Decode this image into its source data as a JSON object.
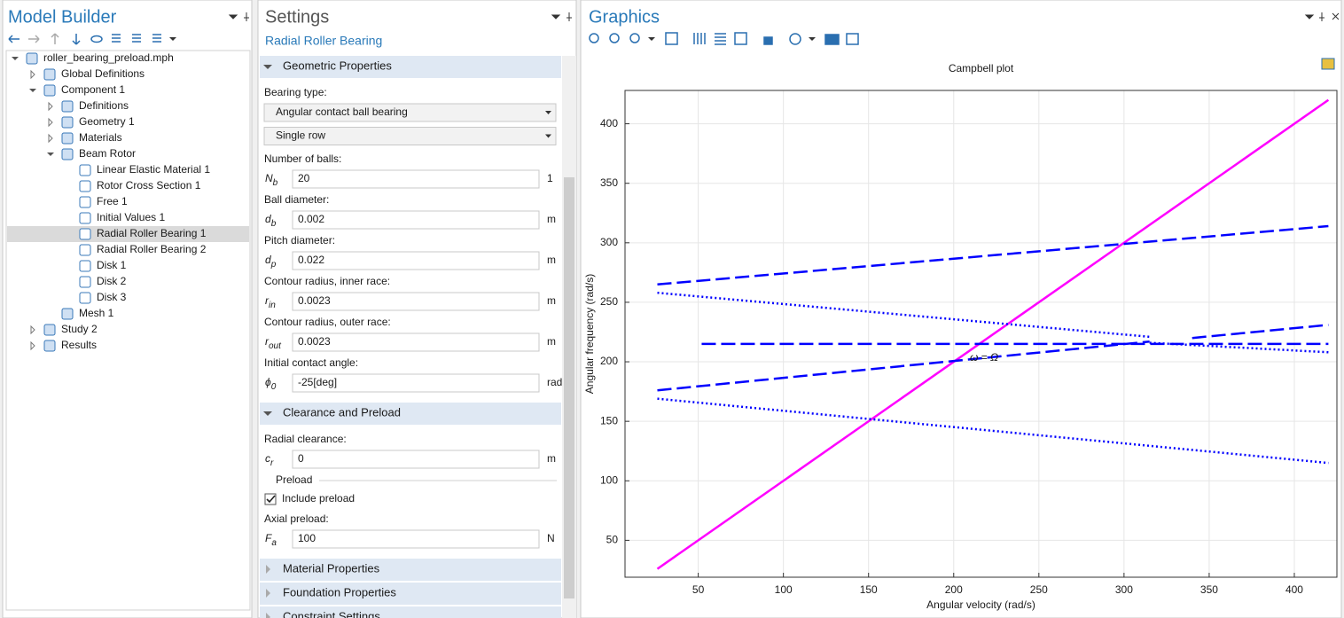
{
  "model_builder": {
    "title": "Model Builder",
    "tree": [
      {
        "label": "roller_bearing_preload.mph",
        "children": [
          {
            "label": "Global Definitions",
            "expandable": true
          },
          {
            "label": "Component 1",
            "children": [
              {
                "label": "Definitions",
                "expandable": true
              },
              {
                "label": "Geometry 1",
                "expandable": true
              },
              {
                "label": "Materials",
                "expandable": true
              },
              {
                "label": "Beam Rotor",
                "children": [
                  {
                    "label": "Linear Elastic Material 1"
                  },
                  {
                    "label": "Rotor Cross Section 1"
                  },
                  {
                    "label": "Free 1"
                  },
                  {
                    "label": "Initial Values 1"
                  },
                  {
                    "label": "Radial Roller Bearing 1",
                    "selected": true
                  },
                  {
                    "label": "Radial Roller Bearing 2"
                  },
                  {
                    "label": "Disk 1"
                  },
                  {
                    "label": "Disk 2"
                  },
                  {
                    "label": "Disk 3"
                  }
                ]
              },
              {
                "label": "Mesh 1"
              }
            ]
          },
          {
            "label": "Study 2",
            "expandable": true
          },
          {
            "label": "Results",
            "expandable": true
          }
        ]
      }
    ]
  },
  "settings": {
    "title": "Settings",
    "subtitle": "Radial Roller Bearing",
    "sections": [
      {
        "title": "Geometric Properties",
        "items": [
          {
            "type": "label",
            "text": "Bearing type:"
          },
          {
            "type": "dropdown",
            "value": "Angular contact ball bearing"
          },
          {
            "type": "dropdown",
            "value": "Single row"
          },
          {
            "type": "label",
            "text": "Number of balls:"
          },
          {
            "type": "input",
            "symbol": {
              "base": "N",
              "sub": "b"
            },
            "value": "20",
            "unit": "1"
          },
          {
            "type": "label",
            "text": "Ball diameter:"
          },
          {
            "type": "input",
            "symbol": {
              "base": "d",
              "sub": "b"
            },
            "value": "0.002",
            "unit": "m"
          },
          {
            "type": "label",
            "text": "Pitch diameter:"
          },
          {
            "type": "input",
            "symbol": {
              "base": "d",
              "sub": "p"
            },
            "value": "0.022",
            "unit": "m"
          },
          {
            "type": "label",
            "text": "Contour radius, inner race:"
          },
          {
            "type": "input",
            "symbol": {
              "base": "r",
              "sub": "in"
            },
            "value": "0.0023",
            "unit": "m"
          },
          {
            "type": "label",
            "text": "Contour radius, outer race:"
          },
          {
            "type": "input",
            "symbol": {
              "base": "r",
              "sub": "out"
            },
            "value": "0.0023",
            "unit": "m"
          },
          {
            "type": "label",
            "text": "Initial contact angle:"
          },
          {
            "type": "input",
            "symbol": {
              "base": "ϕ",
              "sub": "0"
            },
            "value": "-25[deg]",
            "unit": "rad"
          }
        ]
      },
      {
        "title": "Clearance and Preload",
        "items": [
          {
            "type": "label",
            "text": "Radial clearance:"
          },
          {
            "type": "input",
            "symbol": {
              "base": "c",
              "sub": "r"
            },
            "value": "0",
            "unit": "m"
          },
          {
            "type": "group",
            "text": "Preload"
          },
          {
            "type": "checkbox",
            "text": "Include preload",
            "checked": true
          },
          {
            "type": "label",
            "text": "Axial preload:"
          },
          {
            "type": "input",
            "symbol": {
              "base": "F",
              "sub": "a"
            },
            "value": "100",
            "unit": "N"
          }
        ]
      },
      {
        "title": "Material Properties"
      },
      {
        "title": "Foundation Properties"
      },
      {
        "title": "Constraint Settings"
      }
    ]
  },
  "graphics": {
    "title": "Graphics",
    "chart_data": {
      "type": "line",
      "title": "Campbell plot",
      "x_label": "Angular velocity (rad/s)",
      "y_label": "Angular frequency (rad/s)",
      "annotation": "ω = Ω",
      "xlim": [
        7,
        425
      ],
      "ylim": [
        19,
        428
      ],
      "xticks": [
        50,
        100,
        150,
        200,
        250,
        300,
        350,
        400
      ],
      "yticks": [
        50,
        100,
        150,
        200,
        250,
        300,
        350,
        400
      ],
      "grid": true,
      "series": [
        {
          "color": "#ff00ff",
          "style": "solid",
          "x": [
            26,
            420
          ],
          "values": [
            26,
            420
          ]
        },
        {
          "color": "#0000ff",
          "style": "dashed",
          "x": [
            26,
            420
          ],
          "values": [
            265,
            314
          ]
        },
        {
          "color": "#0000ff",
          "style": "dashed",
          "x": [
            26,
            315
          ],
          "values": [
            176,
            217
          ]
        },
        {
          "color": "#0000ff",
          "style": "dashed",
          "x": [
            340,
            420
          ],
          "values": [
            220,
            231
          ]
        },
        {
          "color": "#0000ff",
          "style": "dashed",
          "x": [
            52,
            420
          ],
          "values": [
            215,
            215
          ]
        },
        {
          "color": "#0000ff",
          "style": "dotted",
          "x": [
            26,
            315
          ],
          "values": [
            258,
            221
          ]
        },
        {
          "color": "#0000ff",
          "style": "dotted",
          "x": [
            315,
            420
          ],
          "values": [
            216,
            208
          ]
        },
        {
          "color": "#0000ff",
          "style": "dotted",
          "x": [
            26,
            420
          ],
          "values": [
            169,
            115
          ]
        }
      ]
    }
  }
}
